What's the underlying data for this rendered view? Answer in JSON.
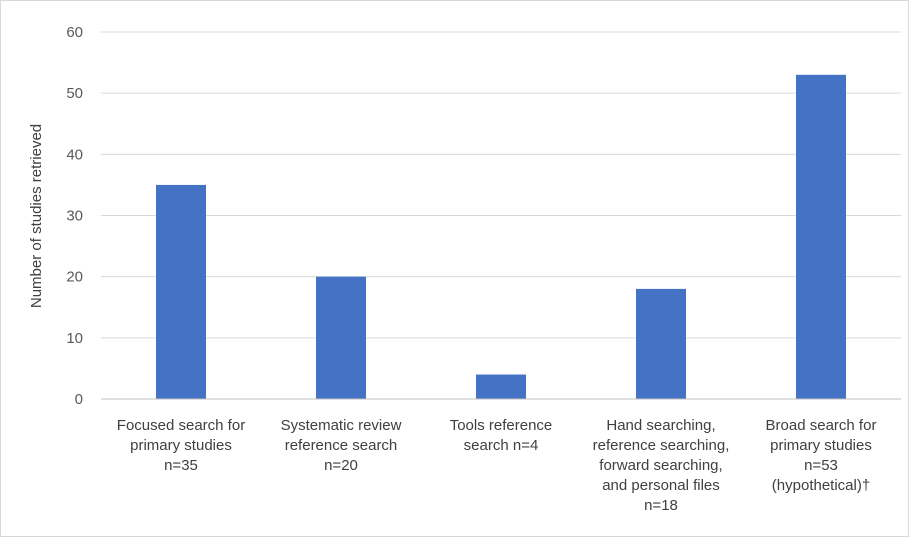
{
  "chart_data": {
    "type": "bar",
    "title": "",
    "xlabel": "",
    "ylabel": "Number of studies retrieved",
    "ylim": [
      0,
      60
    ],
    "yticks": [
      0,
      10,
      20,
      30,
      40,
      50,
      60
    ],
    "grid": true,
    "legend": "none",
    "bar_color": "#4472C4",
    "categories": [
      [
        "Focused search for",
        "primary studies",
        "n=35"
      ],
      [
        "Systematic review",
        "reference search",
        "n=20"
      ],
      [
        "Tools reference",
        "search n=4"
      ],
      [
        "Hand searching,",
        "reference searching,",
        "forward searching,",
        "and personal files",
        "n=18"
      ],
      [
        "Broad search for",
        "primary studies",
        "n=53",
        "(hypothetical)†"
      ]
    ],
    "values": [
      35,
      20,
      4,
      18,
      53
    ]
  }
}
